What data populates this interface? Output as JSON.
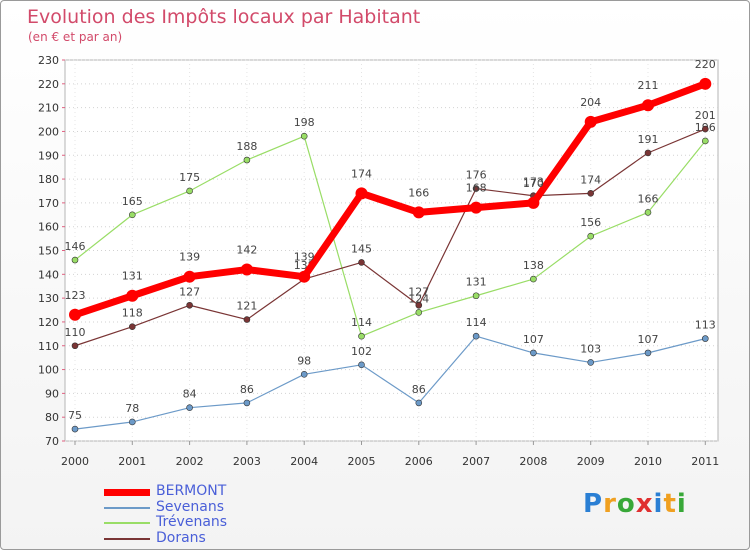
{
  "chart_data": {
    "type": "line",
    "title": "Evolution des Impôts locaux par Habitant",
    "subtitle": "(en € et par an)",
    "xlabel": "",
    "ylabel": "",
    "ylim": [
      70,
      230
    ],
    "yticks": [
      70,
      80,
      90,
      100,
      110,
      120,
      130,
      140,
      150,
      160,
      170,
      180,
      190,
      200,
      210,
      220,
      230
    ],
    "grid": true,
    "categories": [
      "2000",
      "2001",
      "2002",
      "2003",
      "2004",
      "2005",
      "2006",
      "2007",
      "2008",
      "2009",
      "2010",
      "2011"
    ],
    "series": [
      {
        "name": "BERMONT",
        "values": [
          123,
          131,
          139,
          142,
          139,
          174,
          166,
          168,
          170,
          204,
          211,
          220
        ],
        "color": "#ff0000"
      },
      {
        "name": "Sevenans",
        "values": [
          75,
          78,
          84,
          86,
          98,
          102,
          86,
          114,
          107,
          103,
          107,
          113
        ],
        "color": "#6c9ac8"
      },
      {
        "name": "Trévenans",
        "values": [
          146,
          165,
          175,
          188,
          198,
          114,
          124,
          131,
          138,
          156,
          166,
          196
        ],
        "color": "#99dd66"
      },
      {
        "name": "Dorans",
        "values": [
          110,
          118,
          127,
          121,
          138,
          145,
          127,
          176,
          173,
          174,
          191,
          201
        ],
        "color": "#7a3535"
      }
    ]
  },
  "legend": {
    "items": [
      "BERMONT",
      "Sevenans",
      "Trévenans",
      "Dorans"
    ],
    "color": "#4a5fd8"
  },
  "logo": {
    "letters": [
      "P",
      "r",
      "o",
      "x",
      "i",
      "t",
      "i"
    ],
    "colors": [
      "#2a7fd4",
      "#f0a020",
      "#38a838",
      "#e03030",
      "#2a7fd4",
      "#f0a020",
      "#38a838"
    ]
  }
}
